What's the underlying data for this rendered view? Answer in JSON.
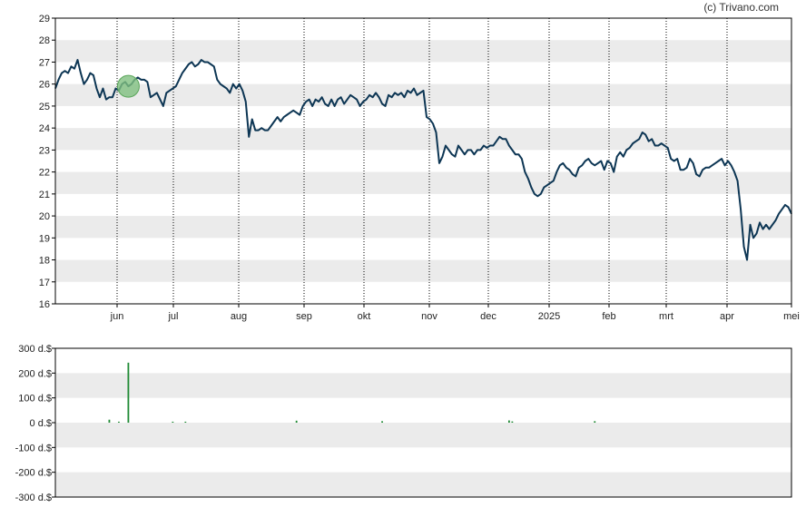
{
  "credit": "(c) Trivano.com",
  "colors": {
    "price_line": "#0d3654",
    "volume_bar": "#1f8a34",
    "band": "#ebebeb",
    "highlight_marker": "#7fbf7f"
  },
  "chart_data": [
    {
      "type": "line",
      "title": "",
      "xlabel": "",
      "ylabel": "",
      "ylim": [
        16,
        29
      ],
      "y_ticks": [
        "16",
        "17",
        "18",
        "19",
        "20",
        "21",
        "22",
        "23",
        "24",
        "25",
        "26",
        "27",
        "28",
        "29"
      ],
      "x_ticks": [
        "jun",
        "jul",
        "aug",
        "sep",
        "okt",
        "nov",
        "dec",
        "2025",
        "feb",
        "mrt",
        "apr",
        "mei"
      ],
      "grid": "horizontal bands, dotted vertical month lines",
      "highlight_marker": {
        "x": 23,
        "y": 25.9
      },
      "series": [
        {
          "values": [
            25.8,
            26.2,
            26.5,
            26.6,
            26.5,
            26.8,
            26.7,
            27.1,
            26.5,
            26.0,
            26.2,
            26.5,
            26.4,
            25.8,
            25.4,
            25.8,
            25.3,
            25.4,
            25.4,
            25.8,
            25.7,
            26.0,
            26.1,
            25.9,
            26.0,
            26.2,
            26.3,
            26.2,
            26.2,
            26.1,
            25.4,
            25.5,
            25.6,
            25.3,
            25.0,
            25.6,
            25.7,
            25.8,
            25.9,
            26.2,
            26.5,
            26.7,
            26.9,
            27.0,
            26.8,
            26.9,
            27.1,
            27.0,
            27.0,
            26.9,
            26.8,
            26.2,
            26.0,
            25.9,
            25.8,
            25.6,
            26.0,
            25.8,
            26.0,
            25.7,
            25.2,
            23.6,
            24.4,
            23.9,
            23.9,
            24.0,
            23.9,
            23.9,
            24.1,
            24.3,
            24.5,
            24.3,
            24.5,
            24.6,
            24.7,
            24.8,
            24.7,
            24.6,
            25.0,
            25.2,
            25.3,
            25.0,
            25.3,
            25.2,
            25.4,
            25.1,
            25.0,
            25.3,
            25.0,
            25.3,
            25.4,
            25.1,
            25.3,
            25.5,
            25.4,
            25.3,
            25.0,
            25.2,
            25.3,
            25.5,
            25.4,
            25.6,
            25.4,
            25.1,
            25.0,
            25.5,
            25.4,
            25.6,
            25.5,
            25.6,
            25.4,
            25.7,
            25.6,
            25.8,
            25.5,
            25.6,
            25.7,
            24.5,
            24.4,
            24.2,
            23.8,
            22.4,
            22.7,
            23.2,
            23.0,
            22.8,
            22.7,
            23.2,
            23.0,
            22.8,
            23.0,
            23.0,
            22.8,
            23.0,
            23.0,
            23.2,
            23.1,
            23.2,
            23.2,
            23.4,
            23.6,
            23.5,
            23.5,
            23.2,
            23.0,
            22.8,
            22.8,
            22.6,
            22.0,
            21.7,
            21.3,
            21.0,
            20.9,
            21.0,
            21.3,
            21.4,
            21.5,
            21.6,
            22.0,
            22.3,
            22.4,
            22.2,
            22.1,
            21.9,
            21.8,
            22.2,
            22.3,
            22.5,
            22.6,
            22.4,
            22.3,
            22.4,
            22.5,
            22.1,
            22.5,
            22.4,
            22.0,
            22.7,
            22.9,
            22.7,
            23.0,
            23.1,
            23.3,
            23.4,
            23.5,
            23.8,
            23.7,
            23.4,
            23.5,
            23.2,
            23.2,
            23.3,
            23.2,
            23.1,
            22.6,
            22.5,
            22.6,
            22.1,
            22.1,
            22.2,
            22.6,
            22.4,
            21.9,
            21.8,
            22.1,
            22.2,
            22.2,
            22.3,
            22.4,
            22.5,
            22.6,
            22.3,
            22.5,
            22.3,
            22.0,
            21.6,
            20.3,
            18.6,
            18.0,
            19.6,
            19.0,
            19.2,
            19.7,
            19.4,
            19.6,
            19.4,
            19.6,
            19.8,
            20.1,
            20.3,
            20.5,
            20.4,
            20.1
          ]
        }
      ]
    },
    {
      "type": "bar",
      "title": "",
      "xlabel": "",
      "ylabel": "",
      "ylim": [
        -300,
        300
      ],
      "y_ticks": [
        "300 d.$",
        "200 d.$",
        "100 d.$",
        "0 d.$",
        "-100 d.$",
        "-200 d.$",
        "-300 d.$"
      ],
      "series": [
        {
          "x": [
            17,
            20,
            23,
            37,
            41,
            76,
            103,
            143,
            144,
            170,
            248
          ],
          "values": [
            12,
            4,
            242,
            4,
            4,
            8,
            6,
            9,
            5,
            6,
            10
          ]
        }
      ]
    }
  ]
}
